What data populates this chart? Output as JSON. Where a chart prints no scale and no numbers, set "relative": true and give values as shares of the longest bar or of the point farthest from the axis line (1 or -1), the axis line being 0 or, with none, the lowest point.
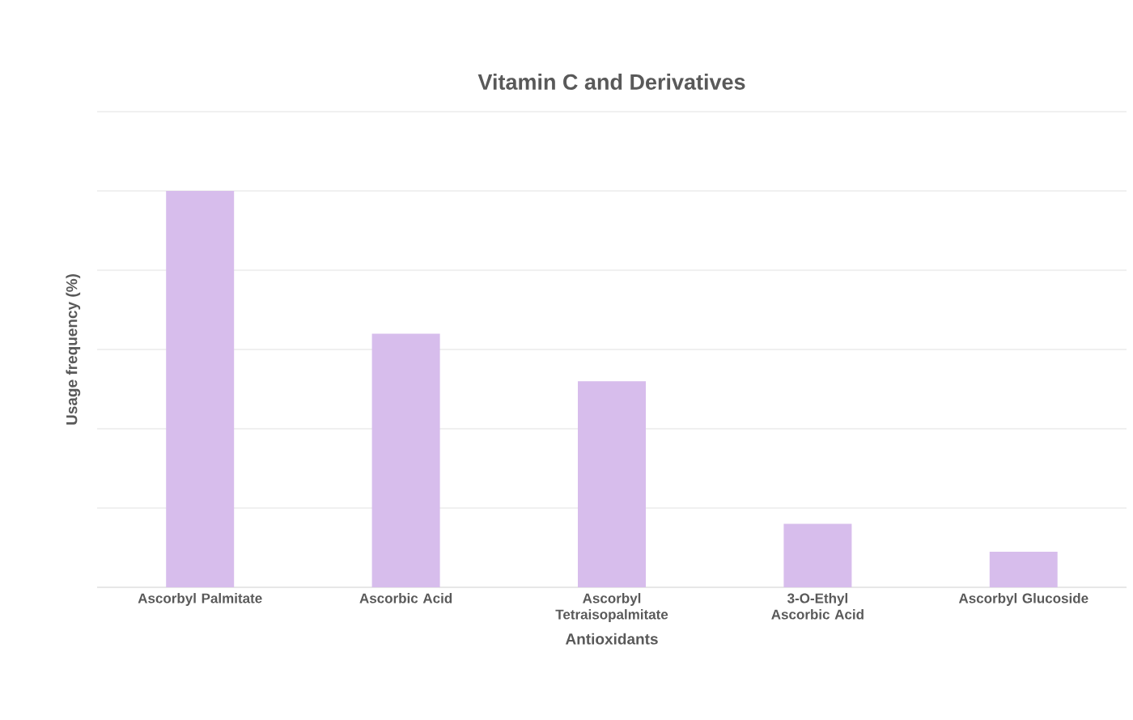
{
  "chart_data": {
    "type": "bar",
    "title": "Vitamin C and Derivatives",
    "xlabel": "Antioxidants",
    "ylabel": "Usage frequency (%)",
    "relative": true,
    "grid": "y",
    "color": "#d7bdec",
    "categories": [
      "Ascorbyl Palmitate",
      "Ascorbic Acid",
      "Ascorbyl Tetraisopalmitate",
      "3-O-Ethyl Ascorbic Acid",
      "Ascorbyl Glucoside"
    ],
    "values": [
      1,
      0.64,
      0.52,
      0.16,
      0.09
    ]
  }
}
